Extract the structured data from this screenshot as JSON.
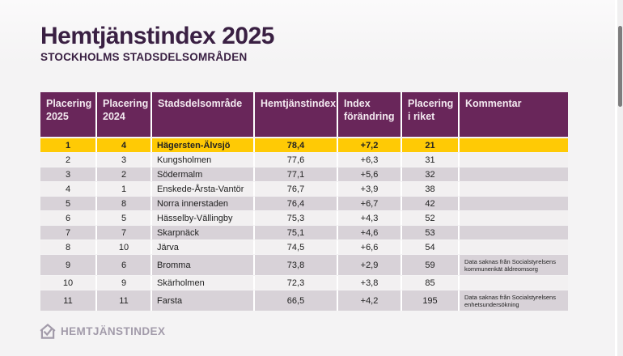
{
  "page": {
    "title": "Hemtjänstindex 2025",
    "subtitle": "STOCKHOLMS STADSDELSOMRÅDEN"
  },
  "logo": {
    "text": "HEMTJÄNSTINDEX",
    "icon": "house-check-icon"
  },
  "colors": {
    "title_text": "#3a2043",
    "header_bg": "#69265a",
    "header_text": "#f3e9f0",
    "highlight_row": "#ffca05",
    "row_light": "#f2f0f1",
    "row_dark": "#d8d2d8",
    "logo_gray": "#a29baa"
  },
  "table": {
    "headers": [
      "Placering\n2025",
      "Placering\n2024",
      "Stadsdelsområde",
      "Hemtjänstindex",
      "Index\nförändring",
      "Placering\ni riket",
      "Kommentar"
    ],
    "rows": [
      {
        "highlight": true,
        "cells": [
          "1",
          "4",
          "Hägersten-Älvsjö",
          "78,4",
          "+7,2",
          "21",
          ""
        ]
      },
      {
        "highlight": false,
        "cells": [
          "2",
          "3",
          "Kungsholmen",
          "77,6",
          "+6,3",
          "31",
          ""
        ]
      },
      {
        "highlight": false,
        "cells": [
          "3",
          "2",
          "Södermalm",
          "77,1",
          "+5,6",
          "32",
          ""
        ]
      },
      {
        "highlight": false,
        "cells": [
          "4",
          "1",
          "Enskede-Årsta-Vantör",
          "76,7",
          "+3,9",
          "38",
          ""
        ]
      },
      {
        "highlight": false,
        "cells": [
          "5",
          "8",
          "Norra innerstaden",
          "76,4",
          "+6,7",
          "42",
          ""
        ]
      },
      {
        "highlight": false,
        "cells": [
          "6",
          "5",
          "Hässelby-Vällingby",
          "75,3",
          "+4,3",
          "52",
          ""
        ]
      },
      {
        "highlight": false,
        "cells": [
          "7",
          "7",
          "Skarpnäck",
          "75,1",
          "+4,6",
          "53",
          ""
        ]
      },
      {
        "highlight": false,
        "cells": [
          "8",
          "10",
          "Järva",
          "74,5",
          "+6,6",
          "54",
          ""
        ]
      },
      {
        "highlight": false,
        "cells": [
          "9",
          "6",
          "Bromma",
          "73,8",
          "+2,9",
          "59",
          "Data saknas från Socialstyrelsens kommunenkät äldreomsorg"
        ]
      },
      {
        "highlight": false,
        "cells": [
          "10",
          "9",
          "Skärholmen",
          "72,3",
          "+3,8",
          "85",
          ""
        ]
      },
      {
        "highlight": false,
        "cells": [
          "11",
          "11",
          "Farsta",
          "66,5",
          "+4,2",
          "195",
          "Data saknas från Socialstyrelsens enhetsundersökning"
        ]
      }
    ]
  },
  "chart_data": {
    "type": "table",
    "title": "Hemtjänstindex 2025",
    "subtitle": "STOCKHOLMS STADSDELSOMRÅDEN",
    "columns": [
      "Placering 2025",
      "Placering 2024",
      "Stadsdelsområde",
      "Hemtjänstindex",
      "Index förändring",
      "Placering i riket",
      "Kommentar"
    ],
    "rows": [
      [
        "1",
        "4",
        "Hägersten-Älvsjö",
        "78,4",
        "+7,2",
        "21",
        ""
      ],
      [
        "2",
        "3",
        "Kungsholmen",
        "77,6",
        "+6,3",
        "31",
        ""
      ],
      [
        "3",
        "2",
        "Södermalm",
        "77,1",
        "+5,6",
        "32",
        ""
      ],
      [
        "4",
        "1",
        "Enskede-Årsta-Vantör",
        "76,7",
        "+3,9",
        "38",
        ""
      ],
      [
        "5",
        "8",
        "Norra innerstaden",
        "76,4",
        "+6,7",
        "42",
        ""
      ],
      [
        "6",
        "5",
        "Hässelby-Vällingby",
        "75,3",
        "+4,3",
        "52",
        ""
      ],
      [
        "7",
        "7",
        "Skarpnäck",
        "75,1",
        "+4,6",
        "53",
        ""
      ],
      [
        "8",
        "10",
        "Järva",
        "74,5",
        "+6,6",
        "54",
        ""
      ],
      [
        "9",
        "6",
        "Bromma",
        "73,8",
        "+2,9",
        "59",
        "Data saknas från Socialstyrelsens kommunenkät äldreomsorg"
      ],
      [
        "10",
        "9",
        "Skärholmen",
        "72,3",
        "+3,8",
        "85",
        ""
      ],
      [
        "11",
        "11",
        "Farsta",
        "66,5",
        "+4,2",
        "195",
        "Data saknas från Socialstyrelsens enhetsundersökning"
      ]
    ],
    "layout_hints": {
      "highlighted_row_index": 0,
      "highlight_color": "#ffca05",
      "zebra_striping": true
    }
  }
}
